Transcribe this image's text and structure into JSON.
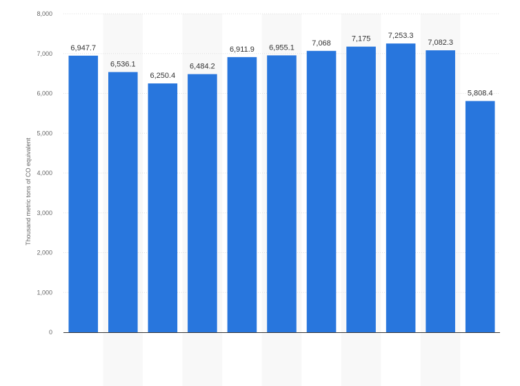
{
  "chart_data": {
    "type": "bar",
    "ylabel": "Thousand metric tons of CO equivalent",
    "xlabel": "",
    "ylim": [
      0,
      8000
    ],
    "yticks": [
      0,
      1000,
      2000,
      3000,
      4000,
      5000,
      6000,
      7000,
      8000
    ],
    "ytick_labels": [
      "0",
      "1,000",
      "2,000",
      "3,000",
      "4,000",
      "5,000",
      "6,000",
      "7,000",
      "8,000"
    ],
    "values": [
      6947.7,
      6536.1,
      6250.4,
      6484.2,
      6911.9,
      6955.1,
      7068,
      7175,
      7253.3,
      7082.3,
      5808.4
    ],
    "value_labels": [
      "6,947.7",
      "6,536.1",
      "6,250.4",
      "6,484.2",
      "6,911.9",
      "6,955.1",
      "7,068",
      "7,175",
      "7,253.3",
      "7,082.3",
      "5,808.4"
    ],
    "grid": true,
    "bar_color": "#2876dd",
    "grid_color": "#dddddd",
    "band_color": "#f8f8f8"
  }
}
